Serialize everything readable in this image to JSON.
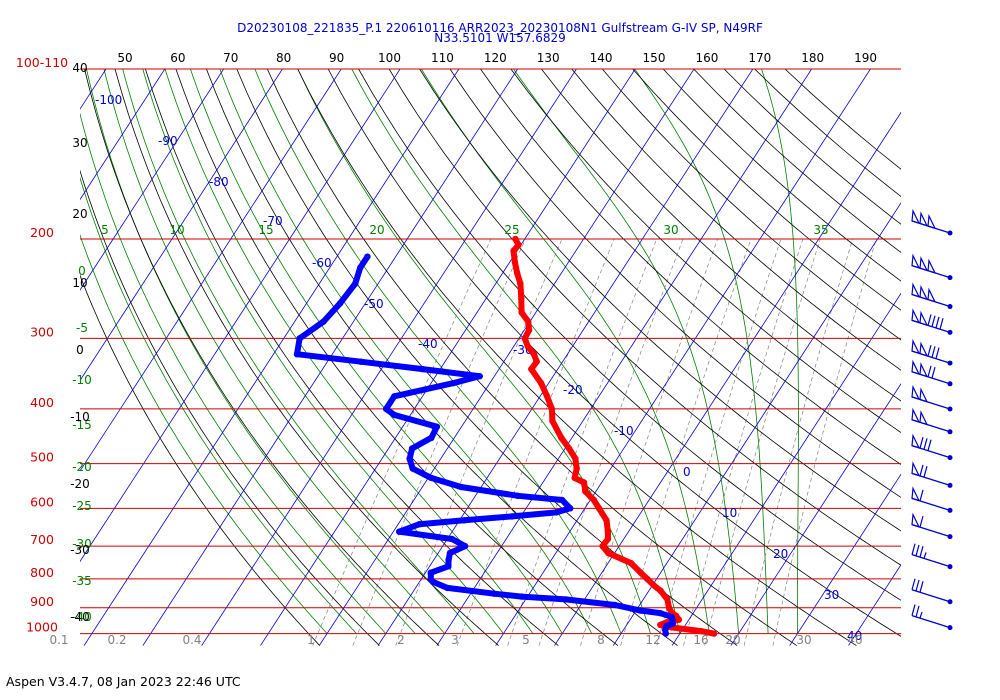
{
  "title": {
    "line1": "D20230108_221835_P.1 220610116 ARR2023_20230108N1 Gulfstream G-IV SP, N49RF",
    "line2": "N33.5101 W157.6829"
  },
  "footer": "Aspen V3.4.7, 08 Jan 2023  22:46 UTC",
  "colors": {
    "isobar": "#cc0000",
    "isotherm": "#0000cc",
    "dry_adiabat": "#000000",
    "moist_adiabat": "#008000",
    "mixing_ratio": "#808080",
    "temperature_trace": "#ff0000",
    "dewpoint_trace": "#0000ff",
    "wind_barb": "#0000cc"
  },
  "chart_data": {
    "type": "skew-t log-p",
    "pressure_axis": {
      "unit": "hPa",
      "tick_labels": [
        "100-110",
        "200",
        "300",
        "400",
        "500",
        "600",
        "700",
        "800",
        "900",
        "1000"
      ],
      "isobars": [
        100,
        200,
        300,
        400,
        500,
        600,
        700,
        800,
        900,
        1000
      ]
    },
    "top_axis_labels": [
      "50",
      "60",
      "70",
      "80",
      "90",
      "100",
      "110",
      "120",
      "130",
      "140",
      "150",
      "160",
      "170",
      "180",
      "190"
    ],
    "height_labels": [
      "40",
      "30",
      "20",
      "10",
      "0",
      "-10",
      "-20",
      "-30",
      "-40"
    ],
    "isotherm_labels": [
      "-100",
      "-90",
      "-80",
      "-70",
      "-60",
      "-50",
      "-40",
      "-30",
      "-20",
      "-10",
      "0",
      "10",
      "20",
      "30",
      "40"
    ],
    "moist_adiabat_labels_top": [
      "5",
      "10",
      "15",
      "20",
      "25",
      "30",
      "35"
    ],
    "moist_adiabat_labels_left": [
      "0",
      "-5",
      "-10",
      "-15",
      "-20",
      "-25",
      "-30",
      "-35",
      "-40"
    ],
    "mixing_ratio_labels": [
      "0.1",
      "0.2",
      "0.4",
      "1",
      "2",
      "3",
      "5",
      "8",
      "12",
      "16",
      "20",
      "30",
      "40"
    ],
    "series": [
      {
        "name": "",
        "kind": "temperature",
        "unit": "°C",
        "points": [
          [
            1000,
            25.8
          ],
          [
            990,
            23.3
          ],
          [
            975,
            17.9
          ],
          [
            965,
            15.7
          ],
          [
            955,
            16.5
          ],
          [
            945,
            18.3
          ],
          [
            930,
            17.4
          ],
          [
            915,
            16.1
          ],
          [
            900,
            15.3
          ],
          [
            870,
            14.1
          ],
          [
            840,
            12.0
          ],
          [
            820,
            10.1
          ],
          [
            800,
            8.4
          ],
          [
            780,
            6.6
          ],
          [
            750,
            3.9
          ],
          [
            720,
            -1.1
          ],
          [
            700,
            -2.8
          ],
          [
            680,
            -2.7
          ],
          [
            660,
            -3.5
          ],
          [
            630,
            -5.0
          ],
          [
            600,
            -7.6
          ],
          [
            580,
            -9.4
          ],
          [
            560,
            -11.8
          ],
          [
            540,
            -13.0
          ],
          [
            530,
            -15.1
          ],
          [
            510,
            -15.8
          ],
          [
            490,
            -17.1
          ],
          [
            470,
            -19.3
          ],
          [
            450,
            -21.8
          ],
          [
            420,
            -25.2
          ],
          [
            400,
            -26.6
          ],
          [
            380,
            -28.8
          ],
          [
            360,
            -31.3
          ],
          [
            340,
            -34.5
          ],
          [
            330,
            -34.4
          ],
          [
            320,
            -35.7
          ],
          [
            310,
            -37.6
          ],
          [
            300,
            -39.0
          ],
          [
            290,
            -39.2
          ],
          [
            280,
            -40.3
          ],
          [
            270,
            -42.4
          ],
          [
            255,
            -44.0
          ],
          [
            240,
            -45.8
          ],
          [
            230,
            -47.5
          ],
          [
            220,
            -49.1
          ],
          [
            210,
            -50.6
          ],
          [
            205,
            -50.4
          ],
          [
            200,
            -51.6
          ]
        ]
      },
      {
        "name": "",
        "kind": "dewpoint",
        "unit": "°C",
        "points": [
          [
            1000,
            17.6
          ],
          [
            985,
            17.1
          ],
          [
            970,
            16.9
          ],
          [
            960,
            17.7
          ],
          [
            945,
            17.2
          ],
          [
            935,
            16.8
          ],
          [
            920,
            14.4
          ],
          [
            910,
            10.7
          ],
          [
            890,
            5.8
          ],
          [
            870,
            -3.2
          ],
          [
            860,
            -11.0
          ],
          [
            850,
            -16.0
          ],
          [
            830,
            -24.6
          ],
          [
            810,
            -27.7
          ],
          [
            800,
            -28.4
          ],
          [
            780,
            -29.1
          ],
          [
            760,
            -26.8
          ],
          [
            740,
            -27.5
          ],
          [
            720,
            -28.0
          ],
          [
            700,
            -26.2
          ],
          [
            680,
            -29.2
          ],
          [
            660,
            -39.0
          ],
          [
            640,
            -36.4
          ],
          [
            630,
            -29.2
          ],
          [
            620,
            -21.5
          ],
          [
            610,
            -14.4
          ],
          [
            600,
            -12.5
          ],
          [
            580,
            -14.8
          ],
          [
            570,
            -22.8
          ],
          [
            550,
            -33.4
          ],
          [
            530,
            -39.5
          ],
          [
            510,
            -43.7
          ],
          [
            490,
            -45.3
          ],
          [
            470,
            -46.0
          ],
          [
            450,
            -43.9
          ],
          [
            430,
            -44.2
          ],
          [
            410,
            -52.7
          ],
          [
            400,
            -54.8
          ],
          [
            380,
            -54.8
          ],
          [
            360,
            -46.2
          ],
          [
            350,
            -42.5
          ],
          [
            340,
            -53.0
          ],
          [
            330,
            -64.3
          ],
          [
            320,
            -76.0
          ],
          [
            300,
            -77.3
          ],
          [
            280,
            -75.1
          ],
          [
            260,
            -74.3
          ],
          [
            240,
            -73.9
          ],
          [
            225,
            -74.8
          ],
          [
            215,
            -74.8
          ]
        ]
      }
    ],
    "wind_barbs": {
      "unit": "kt",
      "levels": [
        {
          "pressure": 200,
          "speed": 150
        },
        {
          "pressure": 240,
          "speed": 150
        },
        {
          "pressure": 270,
          "speed": 150
        },
        {
          "pressure": 300,
          "speed": 140
        },
        {
          "pressure": 340,
          "speed": 130
        },
        {
          "pressure": 370,
          "speed": 120
        },
        {
          "pressure": 410,
          "speed": 100
        },
        {
          "pressure": 450,
          "speed": 100
        },
        {
          "pressure": 500,
          "speed": 80
        },
        {
          "pressure": 560,
          "speed": 70
        },
        {
          "pressure": 620,
          "speed": 60
        },
        {
          "pressure": 690,
          "speed": 60
        },
        {
          "pressure": 780,
          "speed": 35
        },
        {
          "pressure": 900,
          "speed": 30
        },
        {
          "pressure": 1000,
          "speed": 25
        }
      ]
    }
  }
}
